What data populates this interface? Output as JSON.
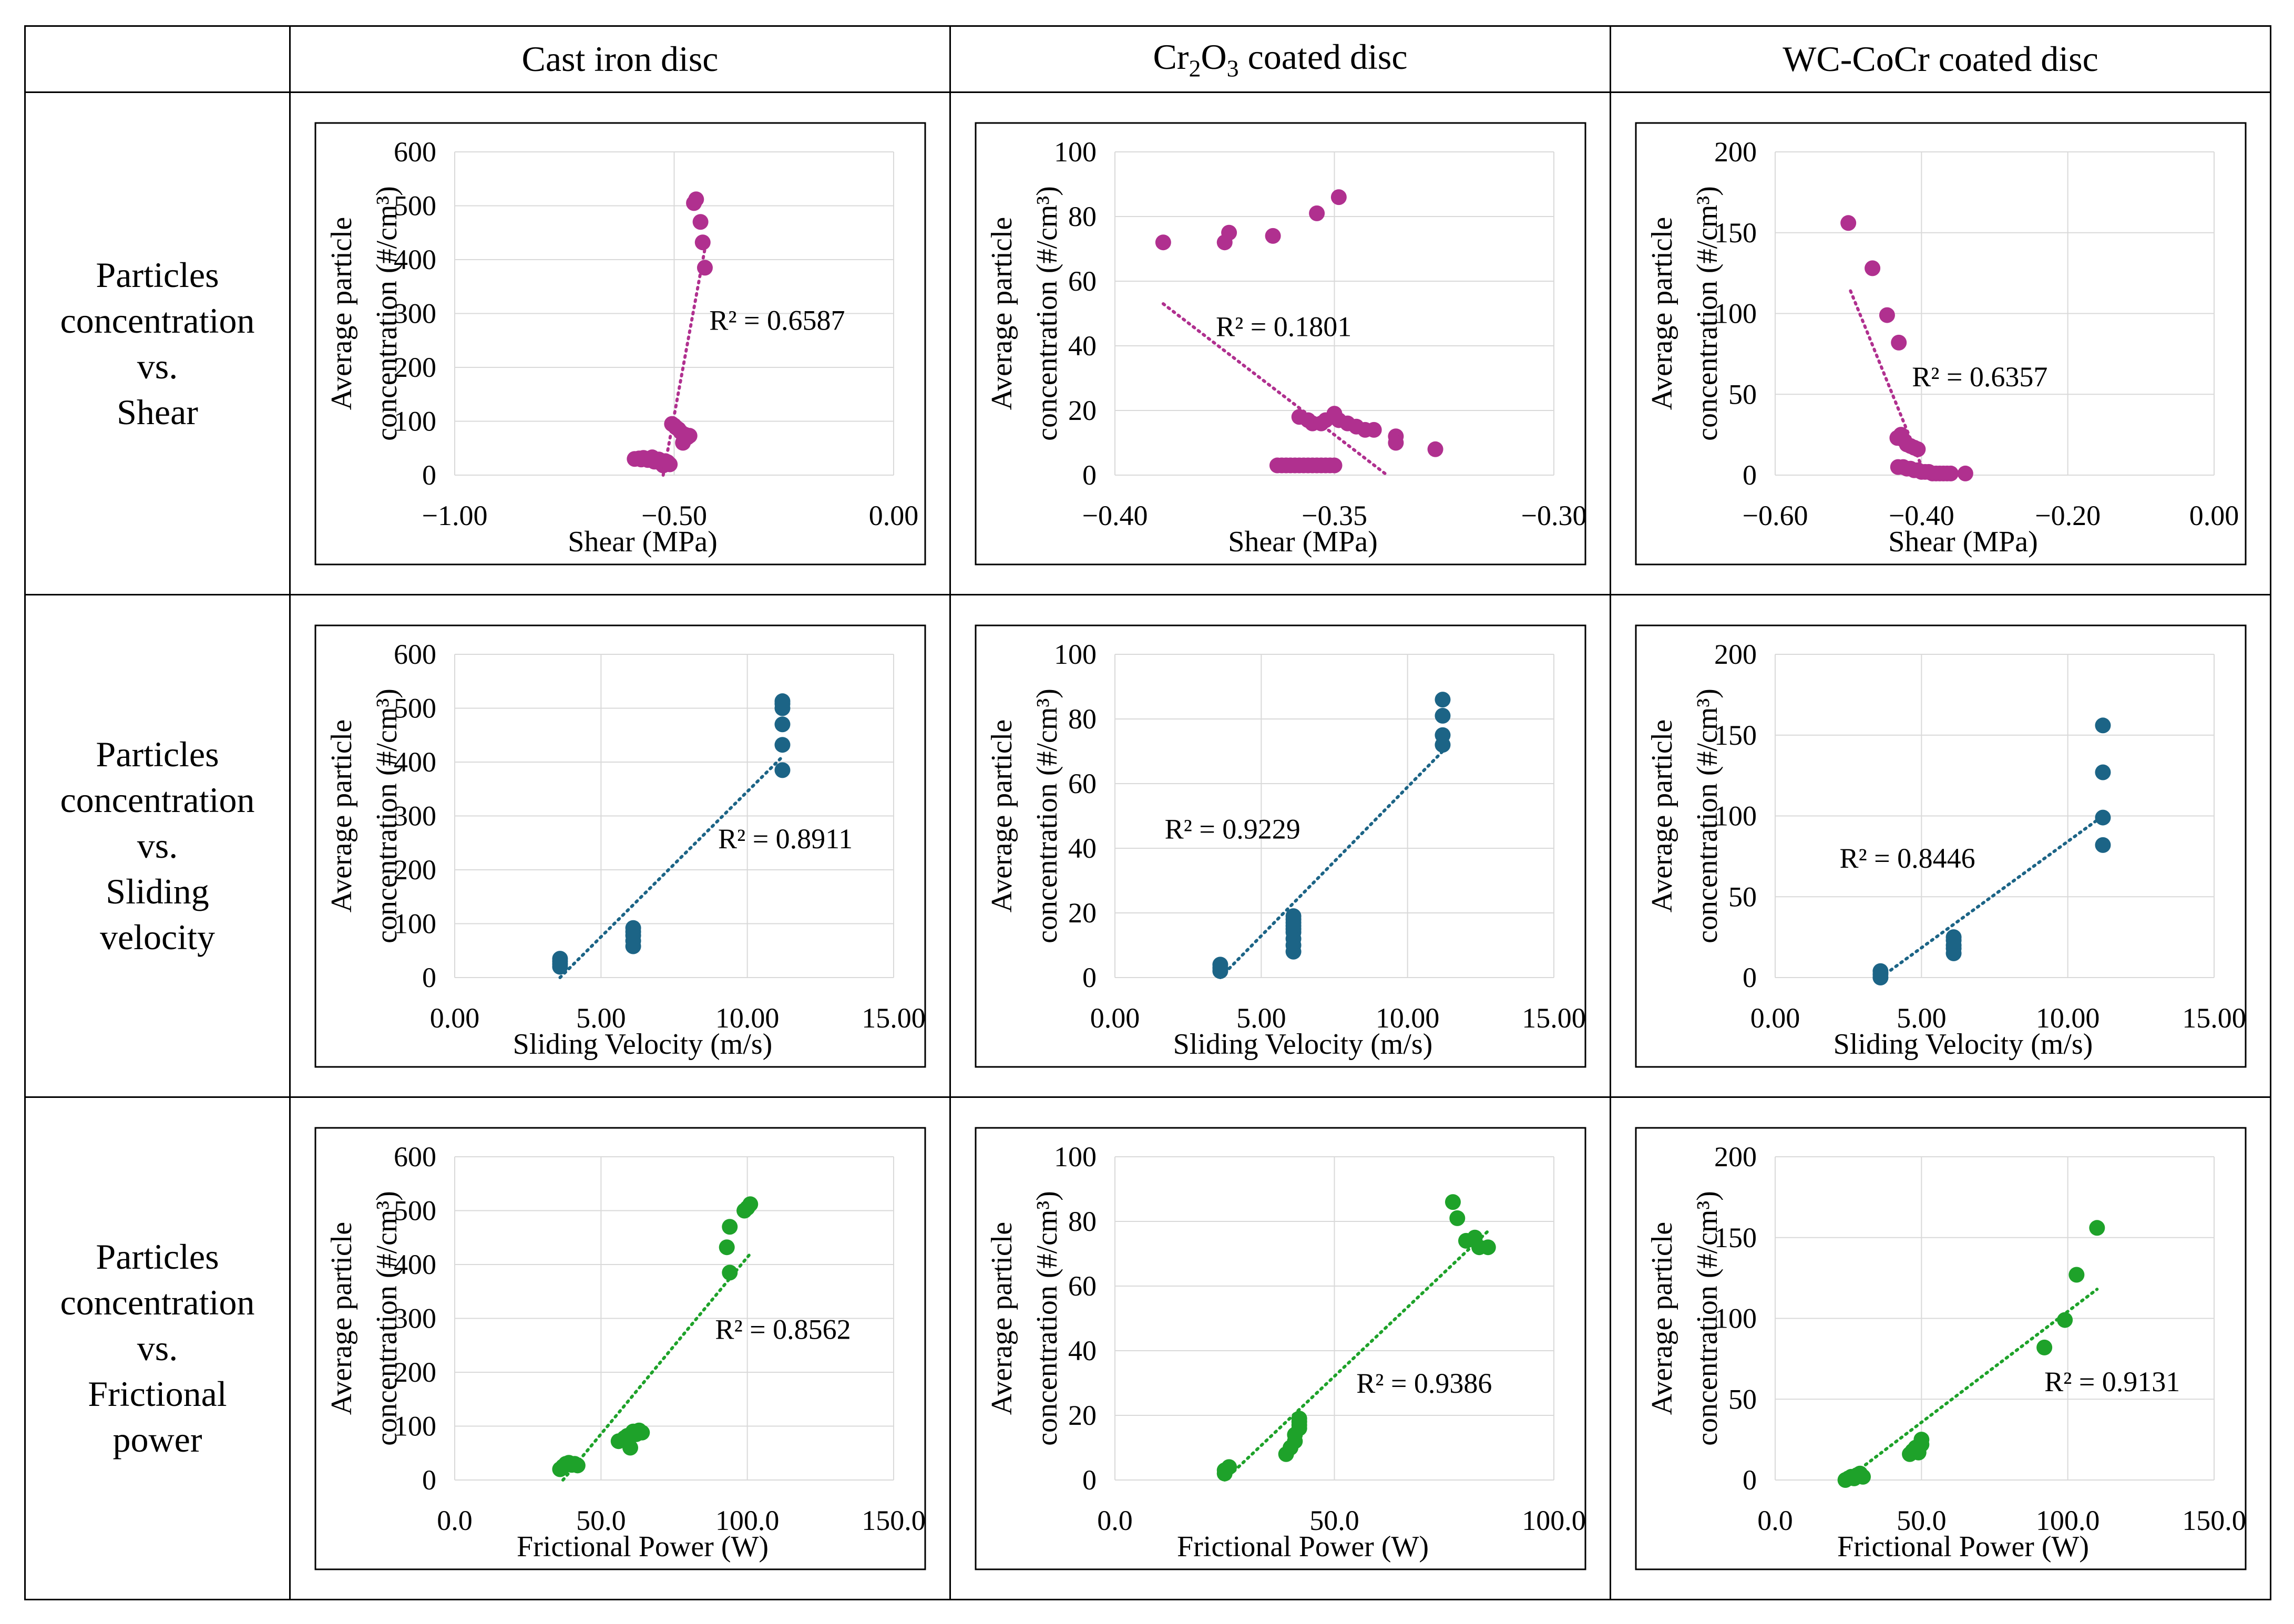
{
  "header": {
    "col1": "Cast iron disc",
    "col2_pre": "Cr",
    "col2_sub1": "2",
    "col2_mid": "O",
    "col2_sub2": "3",
    "col2_post": " coated disc",
    "col3": "WC-CoCr coated disc"
  },
  "rows": [
    {
      "line1": "Particles",
      "line2": "concentration",
      "line3": "vs.",
      "line4": "Shear",
      "line5": ""
    },
    {
      "line1": "Particles",
      "line2": "concentration",
      "line3": "vs.",
      "line4": "Sliding",
      "line5": "velocity"
    },
    {
      "line1": "Particles",
      "line2": "concentration",
      "line3": "vs.",
      "line4": "Frictional",
      "line5": "power"
    }
  ],
  "chart_data": [
    {
      "id": "shear-cast-iron",
      "type": "scatter",
      "title": "",
      "xlabel": "Shear (MPa)",
      "ylabel": [
        "Average particle",
        "concentration (#/cm³)"
      ],
      "color": "#b0308f",
      "xlim": [
        -1.0,
        0.0
      ],
      "ylim": [
        0,
        600
      ],
      "xticks": [
        -1.0,
        -0.5,
        0.0
      ],
      "xticklabels": [
        "−1.00",
        "−0.50",
        "0.00"
      ],
      "yticks": [
        0,
        100,
        200,
        300,
        400,
        500,
        600
      ],
      "yticklabels": [
        "0",
        "100",
        "200",
        "300",
        "400",
        "500",
        "600"
      ],
      "r2": "R² = 0.6587",
      "r2_at": [
        -0.42,
        270
      ],
      "trend": [
        [
          -0.525,
          0
        ],
        [
          -0.43,
          420
        ]
      ],
      "points": [
        [
          -0.59,
          30
        ],
        [
          -0.58,
          31
        ],
        [
          -0.575,
          29
        ],
        [
          -0.57,
          32
        ],
        [
          -0.565,
          30
        ],
        [
          -0.56,
          28
        ],
        [
          -0.555,
          31
        ],
        [
          -0.55,
          33
        ],
        [
          -0.545,
          25
        ],
        [
          -0.54,
          27
        ],
        [
          -0.535,
          29
        ],
        [
          -0.53,
          22
        ],
        [
          -0.525,
          18
        ],
        [
          -0.52,
          26
        ],
        [
          -0.515,
          24
        ],
        [
          -0.51,
          20
        ],
        [
          -0.505,
          95
        ],
        [
          -0.5,
          92
        ],
        [
          -0.495,
          88
        ],
        [
          -0.49,
          85
        ],
        [
          -0.485,
          80
        ],
        [
          -0.48,
          60
        ],
        [
          -0.475,
          75
        ],
        [
          -0.47,
          70
        ],
        [
          -0.465,
          73
        ],
        [
          -0.455,
          505
        ],
        [
          -0.45,
          512
        ],
        [
          -0.44,
          470
        ],
        [
          -0.435,
          432
        ],
        [
          -0.43,
          385
        ]
      ]
    },
    {
      "id": "shear-cr2o3",
      "type": "scatter",
      "title": "",
      "xlabel": "Shear (MPa)",
      "ylabel": [
        "Average particle",
        "concentration (#/cm³)"
      ],
      "color": "#b0308f",
      "xlim": [
        -0.4,
        -0.3
      ],
      "ylim": [
        0,
        100
      ],
      "xticks": [
        -0.4,
        -0.35,
        -0.3
      ],
      "xticklabels": [
        "−0.40",
        "−0.35",
        "−0.30"
      ],
      "yticks": [
        0,
        20,
        40,
        60,
        80,
        100
      ],
      "yticklabels": [
        "0",
        "20",
        "40",
        "60",
        "80",
        "100"
      ],
      "r2": "R² = 0.1801",
      "r2_at": [
        -0.377,
        43
      ],
      "trend": [
        [
          -0.389,
          53
        ],
        [
          -0.338,
          0
        ]
      ],
      "points": [
        [
          -0.389,
          72
        ],
        [
          -0.375,
          72
        ],
        [
          -0.374,
          75
        ],
        [
          -0.364,
          74
        ],
        [
          -0.354,
          81
        ],
        [
          -0.349,
          86
        ],
        [
          -0.363,
          3
        ],
        [
          -0.362,
          3
        ],
        [
          -0.361,
          3
        ],
        [
          -0.36,
          3
        ],
        [
          -0.359,
          3
        ],
        [
          -0.358,
          3
        ],
        [
          -0.357,
          3
        ],
        [
          -0.356,
          3
        ],
        [
          -0.355,
          3
        ],
        [
          -0.354,
          3
        ],
        [
          -0.353,
          3
        ],
        [
          -0.352,
          3
        ],
        [
          -0.351,
          3
        ],
        [
          -0.35,
          3
        ],
        [
          -0.358,
          18
        ],
        [
          -0.356,
          17
        ],
        [
          -0.355,
          16
        ],
        [
          -0.353,
          16
        ],
        [
          -0.352,
          17
        ],
        [
          -0.35,
          19
        ],
        [
          -0.349,
          17
        ],
        [
          -0.347,
          16
        ],
        [
          -0.345,
          15
        ],
        [
          -0.343,
          14
        ],
        [
          -0.341,
          14
        ],
        [
          -0.336,
          12
        ],
        [
          -0.336,
          10
        ],
        [
          -0.327,
          8
        ]
      ]
    },
    {
      "id": "shear-wc-cocr",
      "type": "scatter",
      "title": "",
      "xlabel": "Shear (MPa)",
      "ylabel": [
        "Average particle",
        "concentration (#/cm³)"
      ],
      "color": "#b0308f",
      "xlim": [
        -0.6,
        0.0
      ],
      "ylim": [
        0,
        200
      ],
      "xticks": [
        -0.6,
        -0.4,
        -0.2,
        0.0
      ],
      "xticklabels": [
        "−0.60",
        "−0.40",
        "−0.20",
        "0.00"
      ],
      "yticks": [
        0,
        50,
        100,
        150,
        200
      ],
      "yticklabels": [
        "0",
        "50",
        "100",
        "150",
        "200"
      ],
      "r2": "R² = 0.6357",
      "r2_at": [
        -0.413,
        55
      ],
      "trend": [
        [
          -0.497,
          114
        ],
        [
          -0.395,
          0
        ]
      ],
      "points": [
        [
          -0.5,
          156
        ],
        [
          -0.467,
          128
        ],
        [
          -0.447,
          99
        ],
        [
          -0.431,
          82
        ],
        [
          -0.433,
          23
        ],
        [
          -0.428,
          25
        ],
        [
          -0.425,
          22
        ],
        [
          -0.42,
          19
        ],
        [
          -0.415,
          18
        ],
        [
          -0.41,
          17
        ],
        [
          -0.405,
          16
        ],
        [
          -0.432,
          5
        ],
        [
          -0.425,
          5
        ],
        [
          -0.42,
          4
        ],
        [
          -0.415,
          4
        ],
        [
          -0.41,
          3
        ],
        [
          -0.405,
          3
        ],
        [
          -0.4,
          2
        ],
        [
          -0.395,
          2
        ],
        [
          -0.39,
          2
        ],
        [
          -0.385,
          1
        ],
        [
          -0.38,
          1
        ],
        [
          -0.375,
          1
        ],
        [
          -0.37,
          1
        ],
        [
          -0.365,
          1
        ],
        [
          -0.36,
          1
        ],
        [
          -0.34,
          1
        ]
      ]
    },
    {
      "id": "velocity-cast-iron",
      "type": "scatter",
      "title": "",
      "xlabel": "Sliding Velocity (m/s)",
      "ylabel": [
        "Average particle",
        "concentration (#/cm³)"
      ],
      "color": "#1c6486",
      "xlim": [
        0,
        15
      ],
      "ylim": [
        0,
        600
      ],
      "xticks": [
        0,
        5,
        10,
        15
      ],
      "xticklabels": [
        "0.00",
        "5.00",
        "10.00",
        "15.00"
      ],
      "yticks": [
        0,
        100,
        200,
        300,
        400,
        500,
        600
      ],
      "yticklabels": [
        "0",
        "100",
        "200",
        "300",
        "400",
        "500",
        "600"
      ],
      "r2": "R² = 0.8911",
      "r2_at": [
        9.0,
        240
      ],
      "trend": [
        [
          3.6,
          0
        ],
        [
          11.2,
          410
        ]
      ],
      "points": [
        [
          3.6,
          20
        ],
        [
          3.6,
          25
        ],
        [
          3.6,
          30
        ],
        [
          3.6,
          35
        ],
        [
          6.1,
          58
        ],
        [
          6.1,
          68
        ],
        [
          6.1,
          78
        ],
        [
          6.1,
          85
        ],
        [
          6.1,
          92
        ],
        [
          11.2,
          385
        ],
        [
          11.2,
          432
        ],
        [
          11.2,
          470
        ],
        [
          11.2,
          500
        ],
        [
          11.2,
          508
        ],
        [
          11.2,
          513
        ]
      ]
    },
    {
      "id": "velocity-cr2o3",
      "type": "scatter",
      "title": "",
      "xlabel": "Sliding Velocity (m/s)",
      "ylabel": [
        "Average particle",
        "concentration (#/cm³)"
      ],
      "color": "#1c6486",
      "xlim": [
        0,
        15
      ],
      "ylim": [
        0,
        100
      ],
      "xticks": [
        0,
        5,
        10,
        15
      ],
      "xticklabels": [
        "0.00",
        "5.00",
        "10.00",
        "15.00"
      ],
      "yticks": [
        0,
        20,
        40,
        60,
        80,
        100
      ],
      "yticklabels": [
        "0",
        "20",
        "40",
        "60",
        "80",
        "100"
      ],
      "r2": "R² = 0.9229",
      "r2_at": [
        1.7,
        43
      ],
      "trend": [
        [
          3.6,
          0
        ],
        [
          11.2,
          70
        ]
      ],
      "points": [
        [
          3.6,
          2
        ],
        [
          3.6,
          3
        ],
        [
          3.6,
          4
        ],
        [
          6.1,
          8
        ],
        [
          6.1,
          10
        ],
        [
          6.1,
          12
        ],
        [
          6.1,
          14
        ],
        [
          6.1,
          15
        ],
        [
          6.1,
          16
        ],
        [
          6.1,
          17
        ],
        [
          6.1,
          18
        ],
        [
          6.1,
          19
        ],
        [
          11.2,
          72
        ],
        [
          11.2,
          75
        ],
        [
          11.2,
          81
        ],
        [
          11.2,
          86
        ]
      ]
    },
    {
      "id": "velocity-wc-cocr",
      "type": "scatter",
      "title": "",
      "xlabel": "Sliding Velocity (m/s)",
      "ylabel": [
        "Average particle",
        "concentration (#/cm³)"
      ],
      "color": "#1c6486",
      "xlim": [
        0,
        15
      ],
      "ylim": [
        0,
        200
      ],
      "xticks": [
        0,
        5,
        10,
        15
      ],
      "xticklabels": [
        "0.00",
        "5.00",
        "10.00",
        "15.00"
      ],
      "yticks": [
        0,
        50,
        100,
        150,
        200
      ],
      "yticklabels": [
        "0",
        "50",
        "100",
        "150",
        "200"
      ],
      "r2": "R² = 0.8446",
      "r2_at": [
        2.2,
        68
      ],
      "trend": [
        [
          3.6,
          0
        ],
        [
          11.2,
          100
        ]
      ],
      "points": [
        [
          3.6,
          0
        ],
        [
          3.6,
          2
        ],
        [
          3.6,
          4
        ],
        [
          6.1,
          15
        ],
        [
          6.1,
          18
        ],
        [
          6.1,
          20
        ],
        [
          6.1,
          23
        ],
        [
          6.1,
          25
        ],
        [
          11.2,
          82
        ],
        [
          11.2,
          99
        ],
        [
          11.2,
          127
        ],
        [
          11.2,
          156
        ]
      ]
    },
    {
      "id": "power-cast-iron",
      "type": "scatter",
      "title": "",
      "xlabel": "Frictional Power (W)",
      "ylabel": [
        "Average particle",
        "concentration (#/cm³)"
      ],
      "color": "#1ea22a",
      "xlim": [
        0,
        150
      ],
      "ylim": [
        0,
        600
      ],
      "xticks": [
        0,
        50,
        100,
        150
      ],
      "xticklabels": [
        "0.0",
        "50.0",
        "100.0",
        "150.0"
      ],
      "yticks": [
        0,
        100,
        200,
        300,
        400,
        500,
        600
      ],
      "yticklabels": [
        "0",
        "100",
        "200",
        "300",
        "400",
        "500",
        "600"
      ],
      "r2": "R² = 0.8562",
      "r2_at": [
        89,
        262
      ],
      "trend": [
        [
          37,
          0
        ],
        [
          101,
          420
        ]
      ],
      "points": [
        [
          36,
          20
        ],
        [
          37,
          25
        ],
        [
          38,
          30
        ],
        [
          39,
          32
        ],
        [
          40,
          28
        ],
        [
          41,
          30
        ],
        [
          42,
          27
        ],
        [
          56,
          72
        ],
        [
          58,
          78
        ],
        [
          59,
          82
        ],
        [
          60,
          60
        ],
        [
          61,
          90
        ],
        [
          62,
          85
        ],
        [
          63,
          92
        ],
        [
          64,
          88
        ],
        [
          94,
          385
        ],
        [
          93,
          432
        ],
        [
          94,
          470
        ],
        [
          99,
          500
        ],
        [
          100,
          505
        ],
        [
          101,
          512
        ]
      ]
    },
    {
      "id": "power-cr2o3",
      "type": "scatter",
      "title": "",
      "xlabel": "Frictional Power (W)",
      "ylabel": [
        "Average particle",
        "concentration (#/cm³)"
      ],
      "color": "#1ea22a",
      "xlim": [
        0,
        100
      ],
      "ylim": [
        0,
        100
      ],
      "xticks": [
        0,
        50,
        100
      ],
      "xticklabels": [
        "0.0",
        "50.0",
        "100.0"
      ],
      "yticks": [
        0,
        20,
        40,
        60,
        80,
        100
      ],
      "yticklabels": [
        "0",
        "20",
        "40",
        "60",
        "80",
        "100"
      ],
      "r2": "R² = 0.9386",
      "r2_at": [
        55,
        27
      ],
      "trend": [
        [
          25,
          0
        ],
        [
          85,
          77
        ]
      ],
      "points": [
        [
          25,
          2
        ],
        [
          25,
          3
        ],
        [
          26,
          4
        ],
        [
          39,
          8
        ],
        [
          40,
          10
        ],
        [
          41,
          12
        ],
        [
          41,
          14
        ],
        [
          42,
          16
        ],
        [
          42,
          17
        ],
        [
          42,
          18
        ],
        [
          42,
          19
        ],
        [
          77,
          86
        ],
        [
          78,
          81
        ],
        [
          80,
          74
        ],
        [
          82,
          75
        ],
        [
          83,
          72
        ],
        [
          85,
          72
        ]
      ]
    },
    {
      "id": "power-wc-cocr",
      "type": "scatter",
      "title": "",
      "xlabel": "Frictional Power (W)",
      "ylabel": [
        "Average particle",
        "concentration (#/cm³)"
      ],
      "color": "#1ea22a",
      "xlim": [
        0,
        150
      ],
      "ylim": [
        0,
        200
      ],
      "xticks": [
        0,
        50,
        100,
        150
      ],
      "xticklabels": [
        "0.0",
        "50.0",
        "100.0",
        "150.0"
      ],
      "yticks": [
        0,
        50,
        100,
        150,
        200
      ],
      "yticklabels": [
        "0",
        "50",
        "100",
        "150",
        "200"
      ],
      "r2": "R² = 0.9131",
      "r2_at": [
        92,
        55
      ],
      "trend": [
        [
          24,
          0
        ],
        [
          110,
          118
        ]
      ],
      "points": [
        [
          24,
          0
        ],
        [
          25,
          1
        ],
        [
          26,
          2
        ],
        [
          27,
          1
        ],
        [
          28,
          3
        ],
        [
          29,
          4
        ],
        [
          30,
          2
        ],
        [
          46,
          16
        ],
        [
          47,
          18
        ],
        [
          48,
          20
        ],
        [
          49,
          17
        ],
        [
          50,
          22
        ],
        [
          50,
          25
        ],
        [
          92,
          82
        ],
        [
          99,
          99
        ],
        [
          103,
          127
        ],
        [
          110,
          156
        ]
      ]
    }
  ]
}
